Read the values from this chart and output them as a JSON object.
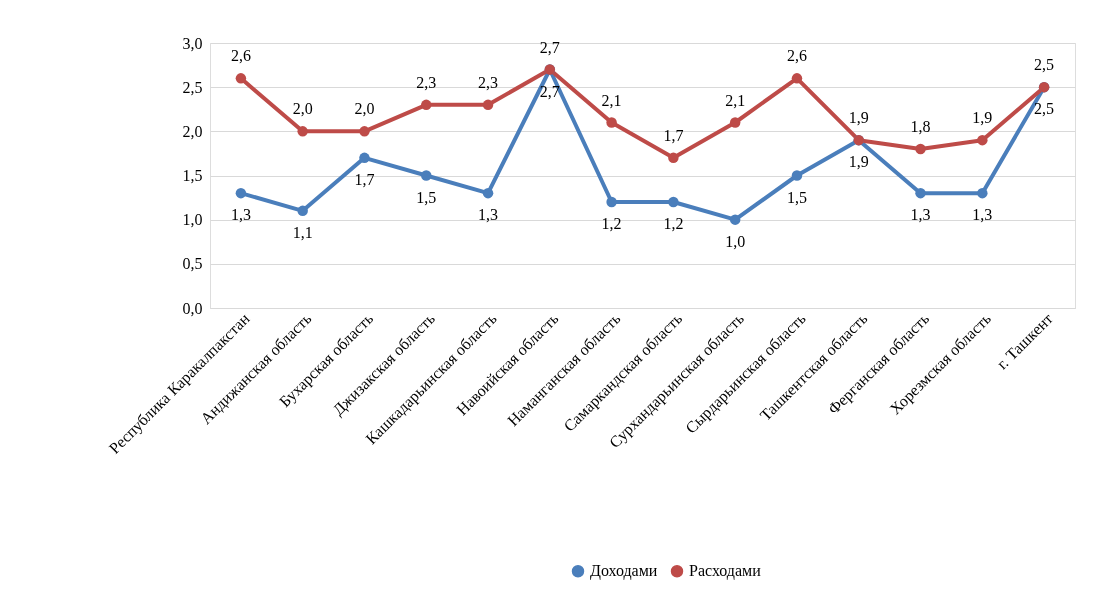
{
  "chart_data": {
    "type": "line",
    "categories": [
      "Республика Каракалпакстан",
      "Андижанская область",
      "Бухарская область",
      "Джизакская область",
      "Кашкадарьинская область",
      "Навоийская область",
      "Наманганская область",
      "Самаркандская область",
      "Сурхандарьинская область",
      "Сырдарьинская область",
      "Ташкентская область",
      "Ферганская область",
      "Хорезмская область",
      "г. Ташкент"
    ],
    "series": [
      {
        "name": "Доходами",
        "color": "#4a7ebb",
        "values": [
          1.3,
          1.1,
          1.7,
          1.5,
          1.3,
          2.7,
          1.2,
          1.2,
          1.0,
          1.5,
          1.9,
          1.3,
          1.3,
          2.5
        ],
        "value_labels": [
          "1,3",
          "1,1",
          "1,7",
          "1,5",
          "1,3",
          "2,7",
          "1,2",
          "1,2",
          "1,0",
          "1,5",
          "1,9",
          "1,3",
          "1,3",
          "2,5"
        ]
      },
      {
        "name": "Расходами",
        "color": "#be4b48",
        "values": [
          2.6,
          2.0,
          2.0,
          2.3,
          2.3,
          2.7,
          2.1,
          1.7,
          2.1,
          2.6,
          1.9,
          1.8,
          1.9,
          2.5
        ],
        "value_labels": [
          "2,6",
          "2,0",
          "2,0",
          "2,3",
          "2,3",
          "2,7",
          "2,1",
          "1,7",
          "2,1",
          "2,6",
          "1,9",
          "1,8",
          "1,9",
          "2,5"
        ]
      }
    ],
    "ylim": [
      0,
      3
    ],
    "yticks": [
      {
        "value": 0,
        "label": "0,0"
      },
      {
        "value": 0.5,
        "label": "0,5"
      },
      {
        "value": 1,
        "label": "1,0"
      },
      {
        "value": 1.5,
        "label": "1,5"
      },
      {
        "value": 2,
        "label": "2,0"
      },
      {
        "value": 2.5,
        "label": "2,5"
      },
      {
        "value": 3,
        "label": "3,0"
      }
    ],
    "grid": "y",
    "legend": "bottom",
    "marker": "circle",
    "line_style": "solid"
  }
}
